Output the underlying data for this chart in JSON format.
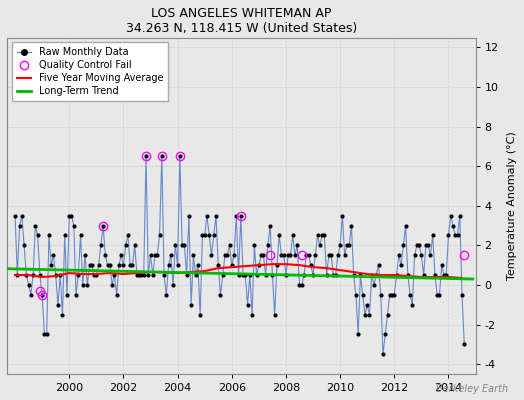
{
  "title": "LOS ANGELES WHITEMAN AP",
  "subtitle": "34.263 N, 118.415 W (United States)",
  "ylabel": "Temperature Anomaly (°C)",
  "watermark": "Berkeley Earth",
  "ylim": [
    -4.5,
    12.5
  ],
  "yticks": [
    -4,
    -2,
    0,
    2,
    4,
    6,
    8,
    10,
    12
  ],
  "xlim": [
    1997.7,
    2015.0
  ],
  "xticks": [
    2000,
    2002,
    2004,
    2006,
    2008,
    2010,
    2012,
    2014
  ],
  "bg_color": "#e8e8e8",
  "plot_bg_color": "#e8e8e8",
  "raw_line_color": "#6688cc",
  "raw_dot_color": "#000000",
  "ma_color": "#ff0000",
  "trend_color": "#00bb00",
  "qc_color": "#ff00ff",
  "raw_data_x": [
    1998.0,
    1998.083,
    1998.167,
    1998.25,
    1998.333,
    1998.417,
    1998.5,
    1998.583,
    1998.667,
    1998.75,
    1998.833,
    1998.917,
    1999.0,
    1999.083,
    1999.167,
    1999.25,
    1999.333,
    1999.417,
    1999.5,
    1999.583,
    1999.667,
    1999.75,
    1999.833,
    1999.917,
    2000.0,
    2000.083,
    2000.167,
    2000.25,
    2000.333,
    2000.417,
    2000.5,
    2000.583,
    2000.667,
    2000.75,
    2000.833,
    2000.917,
    2001.0,
    2001.083,
    2001.167,
    2001.25,
    2001.333,
    2001.417,
    2001.5,
    2001.583,
    2001.667,
    2001.75,
    2001.833,
    2001.917,
    2002.0,
    2002.083,
    2002.167,
    2002.25,
    2002.333,
    2002.417,
    2002.5,
    2002.583,
    2002.667,
    2002.75,
    2002.833,
    2002.917,
    2003.0,
    2003.083,
    2003.167,
    2003.25,
    2003.333,
    2003.417,
    2003.5,
    2003.583,
    2003.667,
    2003.75,
    2003.833,
    2003.917,
    2004.0,
    2004.083,
    2004.167,
    2004.25,
    2004.333,
    2004.417,
    2004.5,
    2004.583,
    2004.667,
    2004.75,
    2004.833,
    2004.917,
    2005.0,
    2005.083,
    2005.167,
    2005.25,
    2005.333,
    2005.417,
    2005.5,
    2005.583,
    2005.667,
    2005.75,
    2005.833,
    2005.917,
    2006.0,
    2006.083,
    2006.167,
    2006.25,
    2006.333,
    2006.417,
    2006.5,
    2006.583,
    2006.667,
    2006.75,
    2006.833,
    2006.917,
    2007.0,
    2007.083,
    2007.167,
    2007.25,
    2007.333,
    2007.417,
    2007.5,
    2007.583,
    2007.667,
    2007.75,
    2007.833,
    2007.917,
    2008.0,
    2008.083,
    2008.167,
    2008.25,
    2008.333,
    2008.417,
    2008.5,
    2008.583,
    2008.667,
    2008.75,
    2008.833,
    2008.917,
    2009.0,
    2009.083,
    2009.167,
    2009.25,
    2009.333,
    2009.417,
    2009.5,
    2009.583,
    2009.667,
    2009.75,
    2009.833,
    2009.917,
    2010.0,
    2010.083,
    2010.167,
    2010.25,
    2010.333,
    2010.417,
    2010.5,
    2010.583,
    2010.667,
    2010.75,
    2010.833,
    2010.917,
    2011.0,
    2011.083,
    2011.167,
    2011.25,
    2011.333,
    2011.417,
    2011.5,
    2011.583,
    2011.667,
    2011.75,
    2011.833,
    2011.917,
    2012.0,
    2012.083,
    2012.167,
    2012.25,
    2012.333,
    2012.417,
    2012.5,
    2012.583,
    2012.667,
    2012.75,
    2012.833,
    2012.917,
    2013.0,
    2013.083,
    2013.167,
    2013.25,
    2013.333,
    2013.417,
    2013.5,
    2013.583,
    2013.667,
    2013.75,
    2013.833,
    2013.917,
    2014.0,
    2014.083,
    2014.167,
    2014.25,
    2014.333,
    2014.417,
    2014.5,
    2014.583
  ],
  "raw_data_y": [
    3.5,
    0.5,
    3.0,
    3.5,
    2.0,
    0.5,
    0.0,
    -0.5,
    0.5,
    3.0,
    2.5,
    0.5,
    -0.5,
    -2.5,
    -2.5,
    2.5,
    1.0,
    1.5,
    0.5,
    -1.0,
    0.5,
    -1.5,
    2.5,
    -0.5,
    3.5,
    3.5,
    3.0,
    -0.5,
    0.5,
    2.5,
    0.0,
    1.5,
    0.0,
    1.0,
    1.0,
    0.5,
    0.5,
    1.0,
    2.0,
    3.0,
    1.5,
    1.0,
    1.0,
    0.0,
    0.5,
    -0.5,
    1.0,
    1.5,
    1.0,
    2.0,
    2.5,
    1.0,
    1.0,
    2.0,
    0.5,
    0.5,
    0.5,
    0.5,
    6.5,
    0.5,
    1.5,
    0.5,
    1.5,
    1.5,
    2.5,
    6.5,
    0.5,
    -0.5,
    1.0,
    1.5,
    0.0,
    2.0,
    1.0,
    6.5,
    2.0,
    2.0,
    0.5,
    3.5,
    -1.0,
    1.5,
    0.5,
    1.0,
    -1.5,
    2.5,
    2.5,
    3.5,
    2.5,
    1.5,
    2.5,
    3.5,
    1.0,
    -0.5,
    0.5,
    1.5,
    1.5,
    2.0,
    1.0,
    1.5,
    3.5,
    0.5,
    3.5,
    0.5,
    0.5,
    -1.0,
    0.5,
    -1.5,
    2.0,
    0.5,
    1.0,
    1.5,
    1.5,
    0.5,
    2.0,
    3.0,
    0.5,
    -1.5,
    1.0,
    2.5,
    1.5,
    1.5,
    0.5,
    1.5,
    1.5,
    2.5,
    1.5,
    2.0,
    0.0,
    0.0,
    0.5,
    1.5,
    1.5,
    1.0,
    0.5,
    1.5,
    2.5,
    2.0,
    2.5,
    2.5,
    0.5,
    1.5,
    1.5,
    0.5,
    0.5,
    1.5,
    2.0,
    3.5,
    1.5,
    2.0,
    2.0,
    3.0,
    0.5,
    -0.5,
    -2.5,
    0.5,
    -0.5,
    -1.5,
    -1.0,
    -1.5,
    0.5,
    0.0,
    0.5,
    1.0,
    -0.5,
    -3.5,
    -2.5,
    -1.5,
    -0.5,
    -0.5,
    -0.5,
    0.5,
    1.5,
    1.0,
    2.0,
    3.0,
    0.5,
    -0.5,
    -1.0,
    1.5,
    2.0,
    2.0,
    1.5,
    0.5,
    2.0,
    2.0,
    1.5,
    2.5,
    0.5,
    -0.5,
    -0.5,
    1.0,
    0.5,
    0.5,
    2.5,
    3.5,
    3.0,
    2.5,
    2.5,
    3.5,
    -0.5,
    -3.0
  ],
  "qc_fail_points": [
    [
      1998.917,
      -0.3
    ],
    [
      1999.0,
      -0.5
    ],
    [
      2001.25,
      3.0
    ],
    [
      2002.833,
      6.5
    ],
    [
      2003.417,
      6.5
    ],
    [
      2004.083,
      6.5
    ],
    [
      2006.333,
      3.5
    ],
    [
      2007.417,
      1.5
    ],
    [
      2008.583,
      1.5
    ],
    [
      2014.583,
      1.5
    ]
  ],
  "moving_avg_x": [
    1998.0,
    1998.5,
    1999.0,
    1999.5,
    2000.0,
    2000.5,
    2001.0,
    2001.5,
    2002.0,
    2002.5,
    2003.0,
    2003.5,
    2004.0,
    2004.5,
    2005.0,
    2005.5,
    2006.0,
    2006.5,
    2007.0,
    2007.5,
    2008.0,
    2008.5,
    2009.0,
    2009.5,
    2010.0,
    2010.5,
    2011.0,
    2011.5,
    2012.0,
    2012.5,
    2013.0,
    2013.5,
    2014.0,
    2014.5
  ],
  "moving_avg_y": [
    0.5,
    0.5,
    0.4,
    0.45,
    0.6,
    0.55,
    0.55,
    0.6,
    0.55,
    0.6,
    0.65,
    0.65,
    0.6,
    0.65,
    0.7,
    0.85,
    0.9,
    0.95,
    1.0,
    1.05,
    1.05,
    1.0,
    0.9,
    0.85,
    0.75,
    0.65,
    0.55,
    0.5,
    0.5,
    0.45,
    0.4,
    0.4,
    0.4,
    0.35
  ],
  "trend_x": [
    1997.7,
    2014.9
  ],
  "trend_y": [
    0.82,
    0.3
  ]
}
